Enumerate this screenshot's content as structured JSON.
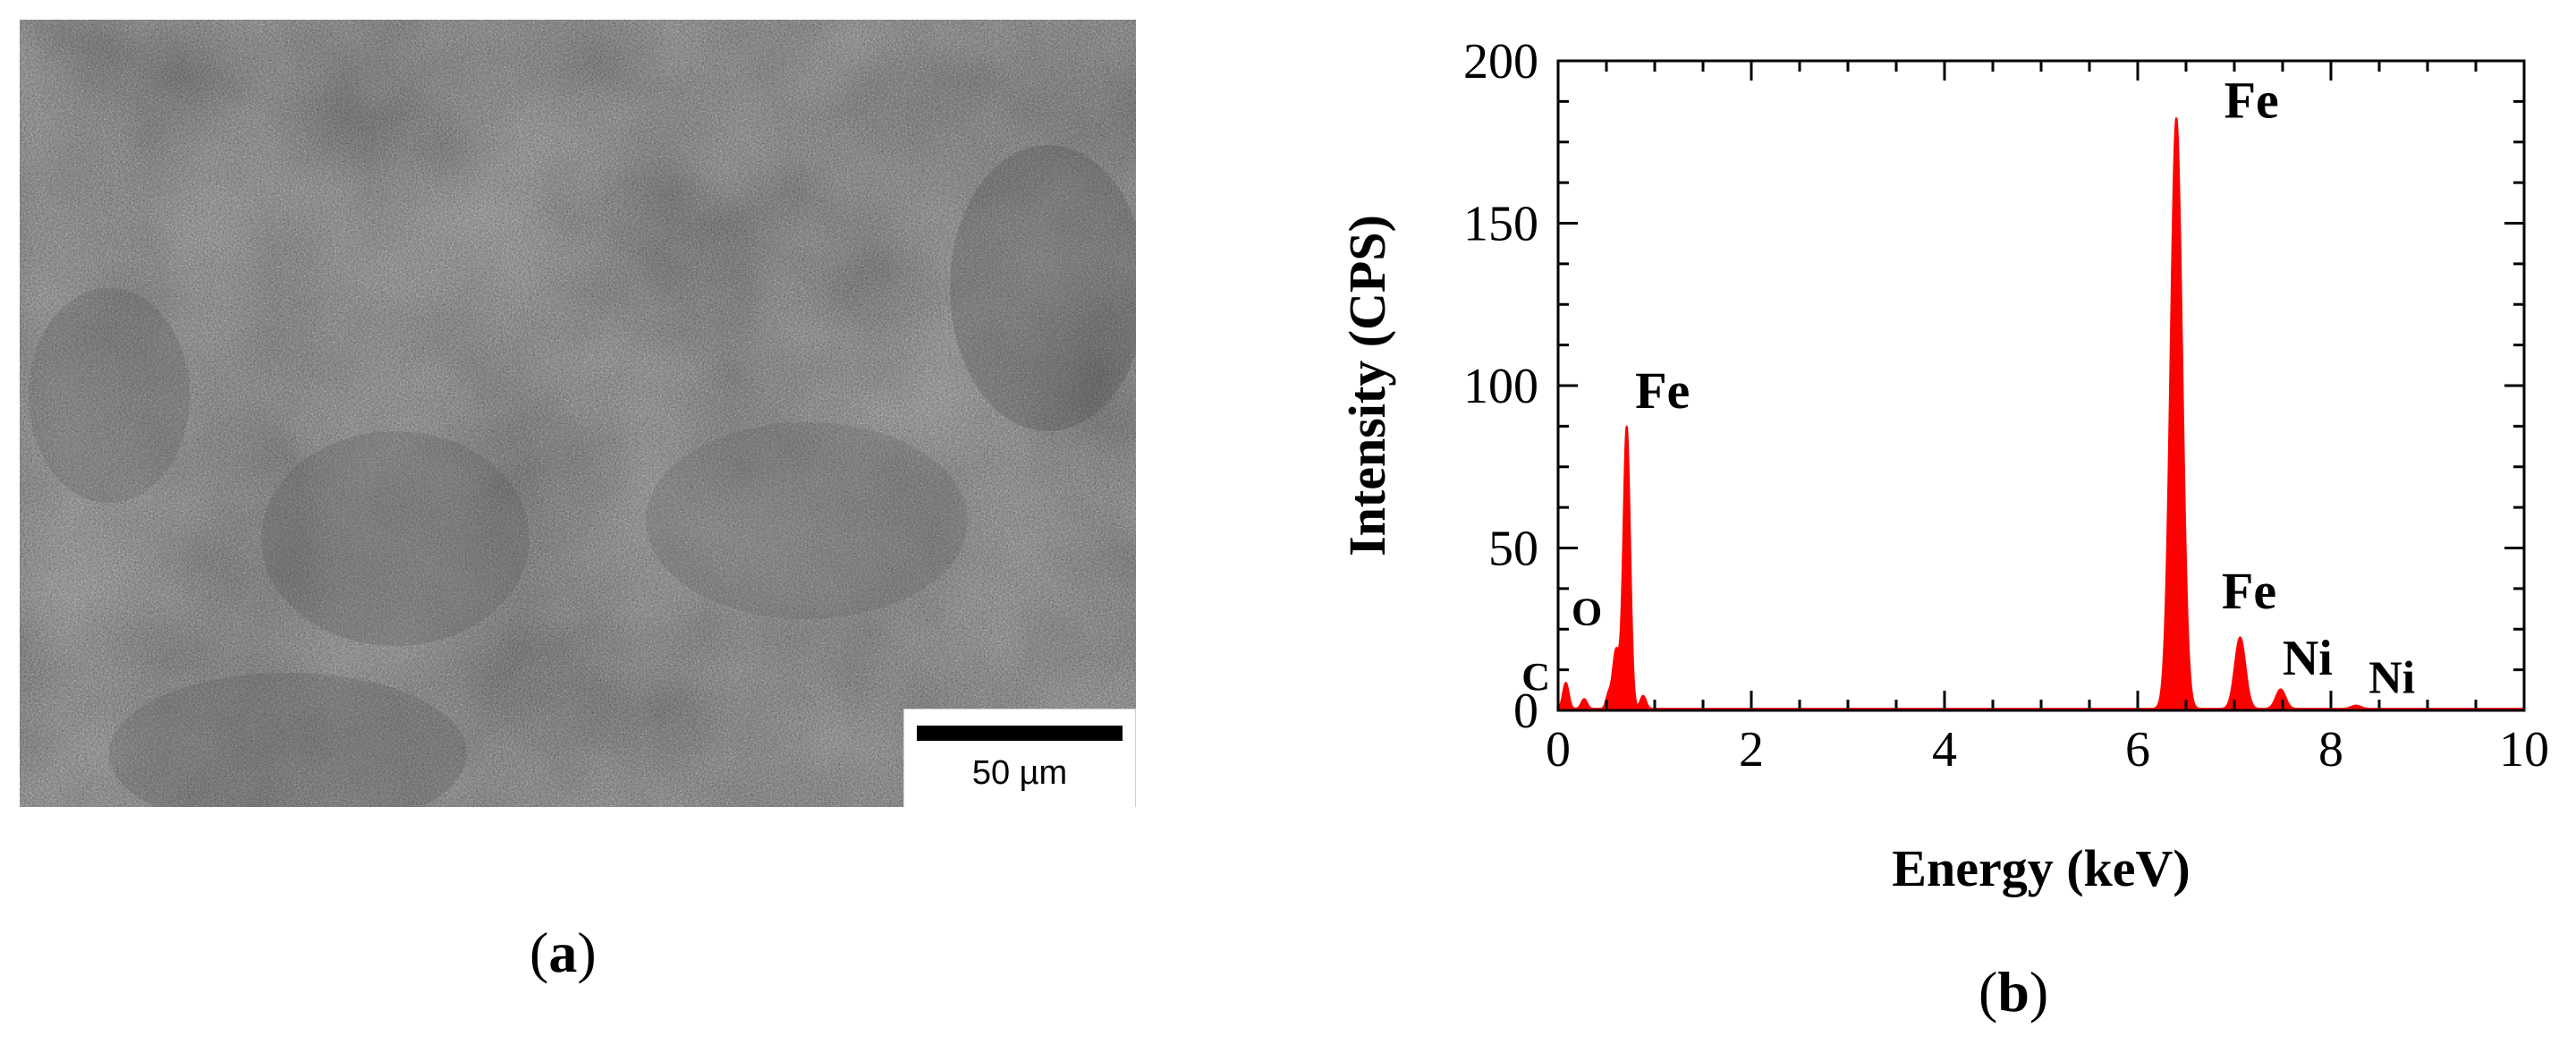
{
  "panels": {
    "a": {
      "label": "a",
      "scale_bar_text": "50 µm"
    },
    "b": {
      "label": "b"
    }
  },
  "colors": {
    "spectrum": "#ff0000",
    "sem_base": "#8a8a8a"
  },
  "chart_data": {
    "type": "line",
    "title": "",
    "xlabel": "Energy (keV)",
    "ylabel": "Intensity (CPS)",
    "xlim": [
      0,
      10
    ],
    "ylim": [
      0,
      200
    ],
    "x_ticks": [
      0,
      2,
      4,
      6,
      8,
      10
    ],
    "y_ticks": [
      0,
      50,
      100,
      150,
      200
    ],
    "grid": false,
    "filled": true,
    "series": [
      {
        "peaks": [
          {
            "x": 0.08,
            "y": 8,
            "width": 0.03
          },
          {
            "x": 0.27,
            "y": 3,
            "width": 0.03
          },
          {
            "x": 0.52,
            "y": 4,
            "width": 0.025
          },
          {
            "x": 0.6,
            "y": 18,
            "width": 0.035
          },
          {
            "x": 0.71,
            "y": 87,
            "width": 0.035
          },
          {
            "x": 0.88,
            "y": 4,
            "width": 0.03
          },
          {
            "x": 6.4,
            "y": 182,
            "width": 0.06
          },
          {
            "x": 7.06,
            "y": 22,
            "width": 0.055
          },
          {
            "x": 7.48,
            "y": 6,
            "width": 0.05
          },
          {
            "x": 8.26,
            "y": 1,
            "width": 0.05
          }
        ],
        "baseline": 0.5
      }
    ],
    "annotations": [
      {
        "text": "Fe",
        "x": 0.71,
        "y": 87
      },
      {
        "text": "Fe",
        "x": 6.4,
        "y": 182
      },
      {
        "text": "Fe",
        "x": 7.06,
        "y": 22
      },
      {
        "text": "Ni",
        "x": 7.48,
        "y": 6
      },
      {
        "text": "Ni",
        "x": 8.26,
        "y": 1
      },
      {
        "text": "O",
        "x": 0.52,
        "y": 18
      },
      {
        "text": "C",
        "x": 0.27,
        "y": 3
      }
    ]
  }
}
